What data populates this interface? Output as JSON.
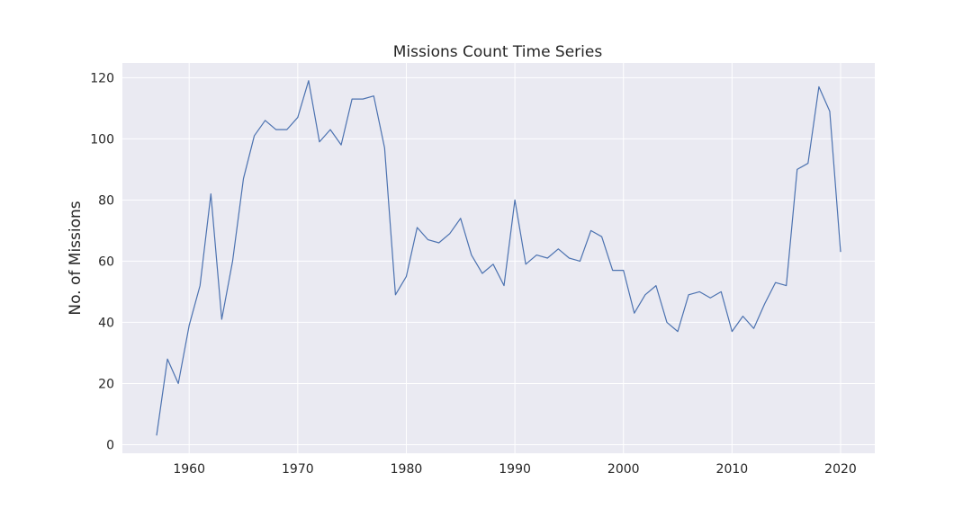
{
  "chart_data": {
    "type": "line",
    "title": "Missions Count Time Series",
    "xlabel": "",
    "ylabel": "No. of Missions",
    "xlim": [
      1953.85,
      2023.15
    ],
    "ylim": [
      -2.8,
      124.8
    ],
    "xticks": [
      1960,
      1970,
      1980,
      1990,
      2000,
      2010,
      2020
    ],
    "yticks": [
      0,
      20,
      40,
      60,
      80,
      100,
      120
    ],
    "grid": true,
    "legend": "none",
    "colors": {
      "background": "#eaeaf2",
      "grid": "#ffffff",
      "line": "#4c72b0",
      "text": "#262626"
    },
    "series": [
      {
        "x": [
          1957,
          1958,
          1959,
          1960,
          1961,
          1962,
          1963,
          1964,
          1965,
          1966,
          1967,
          1968,
          1969,
          1970,
          1971,
          1972,
          1973,
          1974,
          1975,
          1976,
          1977,
          1978,
          1979,
          1980,
          1981,
          1982,
          1983,
          1984,
          1985,
          1986,
          1987,
          1988,
          1989,
          1990,
          1991,
          1992,
          1993,
          1994,
          1995,
          1996,
          1997,
          1998,
          1999,
          2000,
          2001,
          2002,
          2003,
          2004,
          2005,
          2006,
          2007,
          2008,
          2009,
          2010,
          2011,
          2012,
          2013,
          2014,
          2015,
          2016,
          2017,
          2018,
          2019,
          2020
        ],
        "values": [
          3,
          28,
          20,
          39,
          52,
          82,
          41,
          60,
          87,
          101,
          106,
          103,
          103,
          107,
          119,
          99,
          103,
          98,
          113,
          113,
          114,
          97,
          49,
          55,
          71,
          67,
          66,
          69,
          74,
          62,
          56,
          59,
          52,
          80,
          59,
          62,
          61,
          64,
          61,
          60,
          70,
          68,
          57,
          57,
          43,
          49,
          52,
          40,
          37,
          49,
          50,
          48,
          50,
          37,
          42,
          38,
          46,
          53,
          52,
          90,
          92,
          117,
          109,
          63
        ]
      }
    ]
  }
}
